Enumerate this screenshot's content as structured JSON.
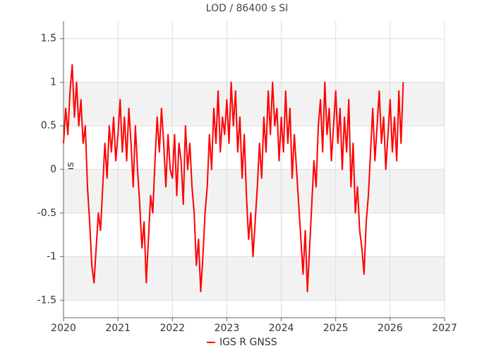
{
  "chart_data": {
    "type": "line",
    "title": "LOD / 86400 s SI",
    "y_label": "ms",
    "xlim": [
      2020,
      2027
    ],
    "xticks": [
      2020,
      2021,
      2022,
      2023,
      2024,
      2025,
      2026,
      2027
    ],
    "ylim": [
      -1.7,
      1.7
    ],
    "yticks": [
      -1.5,
      -1,
      -0.5,
      0,
      0.5,
      1,
      1.5
    ],
    "grid": true,
    "legend": "bottom",
    "x": [
      2020,
      2020.04,
      2020.08,
      2020.12,
      2020.16,
      2020.2,
      2020.24,
      2020.28,
      2020.32,
      2020.36,
      2020.4,
      2020.44,
      2020.48,
      2020.52,
      2020.56,
      2020.6,
      2020.64,
      2020.68,
      2020.72,
      2020.76,
      2020.8,
      2020.84,
      2020.88,
      2020.92,
      2020.96,
      2021,
      2021.04,
      2021.08,
      2021.12,
      2021.16,
      2021.2,
      2021.24,
      2021.28,
      2021.32,
      2021.36,
      2021.4,
      2021.44,
      2021.48,
      2021.52,
      2021.56,
      2021.6,
      2021.64,
      2021.68,
      2021.72,
      2021.76,
      2021.8,
      2021.84,
      2021.88,
      2021.92,
      2021.96,
      2022,
      2022.04,
      2022.08,
      2022.12,
      2022.16,
      2022.2,
      2022.24,
      2022.28,
      2022.32,
      2022.36,
      2022.4,
      2022.44,
      2022.48,
      2022.52,
      2022.56,
      2022.6,
      2022.64,
      2022.68,
      2022.72,
      2022.76,
      2022.8,
      2022.84,
      2022.88,
      2022.92,
      2022.96,
      2023,
      2023.04,
      2023.08,
      2023.12,
      2023.16,
      2023.2,
      2023.24,
      2023.28,
      2023.32,
      2023.36,
      2023.4,
      2023.44,
      2023.48,
      2023.52,
      2023.56,
      2023.6,
      2023.64,
      2023.68,
      2023.72,
      2023.76,
      2023.8,
      2023.84,
      2023.88,
      2023.92,
      2023.96,
      2024,
      2024.04,
      2024.08,
      2024.12,
      2024.16,
      2024.2,
      2024.24,
      2024.28,
      2024.32,
      2024.36,
      2024.4,
      2024.44,
      2024.48,
      2024.52,
      2024.56,
      2024.6,
      2024.64,
      2024.68,
      2024.72,
      2024.76,
      2024.8,
      2024.84,
      2024.88,
      2024.92,
      2024.96,
      2025,
      2025.04,
      2025.08,
      2025.12,
      2025.16,
      2025.2,
      2025.24,
      2025.28,
      2025.32,
      2025.36,
      2025.4,
      2025.44,
      2025.48,
      2025.52,
      2025.56,
      2025.6,
      2025.64,
      2025.68,
      2025.72,
      2025.76,
      2025.8,
      2025.84,
      2025.88,
      2025.92,
      2025.96,
      2026,
      2026.04,
      2026.08,
      2026.12,
      2026.16,
      2026.2,
      2026.24
    ],
    "series": [
      {
        "name": "IGS R GNSS",
        "color": "#ff0000",
        "values": [
          0.3,
          0.7,
          0.4,
          0.9,
          1.2,
          0.6,
          1.0,
          0.5,
          0.8,
          0.3,
          0.5,
          -0.2,
          -0.6,
          -1.1,
          -1.3,
          -0.9,
          -0.5,
          -0.7,
          -0.2,
          0.3,
          -0.1,
          0.5,
          0.2,
          0.6,
          0.1,
          0.4,
          0.8,
          0.2,
          0.6,
          0.1,
          0.7,
          0.3,
          -0.2,
          0.5,
          0.0,
          -0.4,
          -0.9,
          -0.6,
          -1.3,
          -0.8,
          -0.3,
          -0.5,
          0.1,
          0.6,
          0.2,
          0.7,
          0.3,
          -0.2,
          0.4,
          0.0,
          -0.1,
          0.4,
          -0.3,
          0.3,
          0.1,
          -0.4,
          0.5,
          0.0,
          0.3,
          -0.2,
          -0.5,
          -1.1,
          -0.8,
          -1.4,
          -1.0,
          -0.5,
          -0.2,
          0.4,
          0.0,
          0.7,
          0.3,
          0.9,
          0.2,
          0.6,
          0.4,
          0.8,
          0.3,
          1.0,
          0.5,
          0.9,
          0.2,
          0.6,
          -0.1,
          0.4,
          -0.3,
          -0.8,
          -0.5,
          -1.0,
          -0.6,
          -0.2,
          0.3,
          -0.1,
          0.6,
          0.2,
          0.9,
          0.4,
          1.0,
          0.5,
          0.7,
          0.1,
          0.6,
          0.2,
          0.9,
          0.3,
          0.7,
          -0.1,
          0.4,
          0.0,
          -0.4,
          -0.8,
          -1.2,
          -0.7,
          -1.4,
          -0.9,
          -0.4,
          0.1,
          -0.2,
          0.5,
          0.8,
          0.2,
          1.0,
          0.4,
          0.7,
          0.1,
          0.5,
          0.9,
          0.3,
          0.7,
          0.0,
          0.6,
          0.2,
          0.8,
          -0.2,
          0.3,
          -0.5,
          -0.2,
          -0.7,
          -0.9,
          -1.2,
          -0.6,
          -0.3,
          0.2,
          0.7,
          0.1,
          0.5,
          0.9,
          0.3,
          0.6,
          0.0,
          0.4,
          0.8,
          0.2,
          0.6,
          0.1,
          0.9,
          0.3,
          1.0
        ]
      }
    ]
  }
}
